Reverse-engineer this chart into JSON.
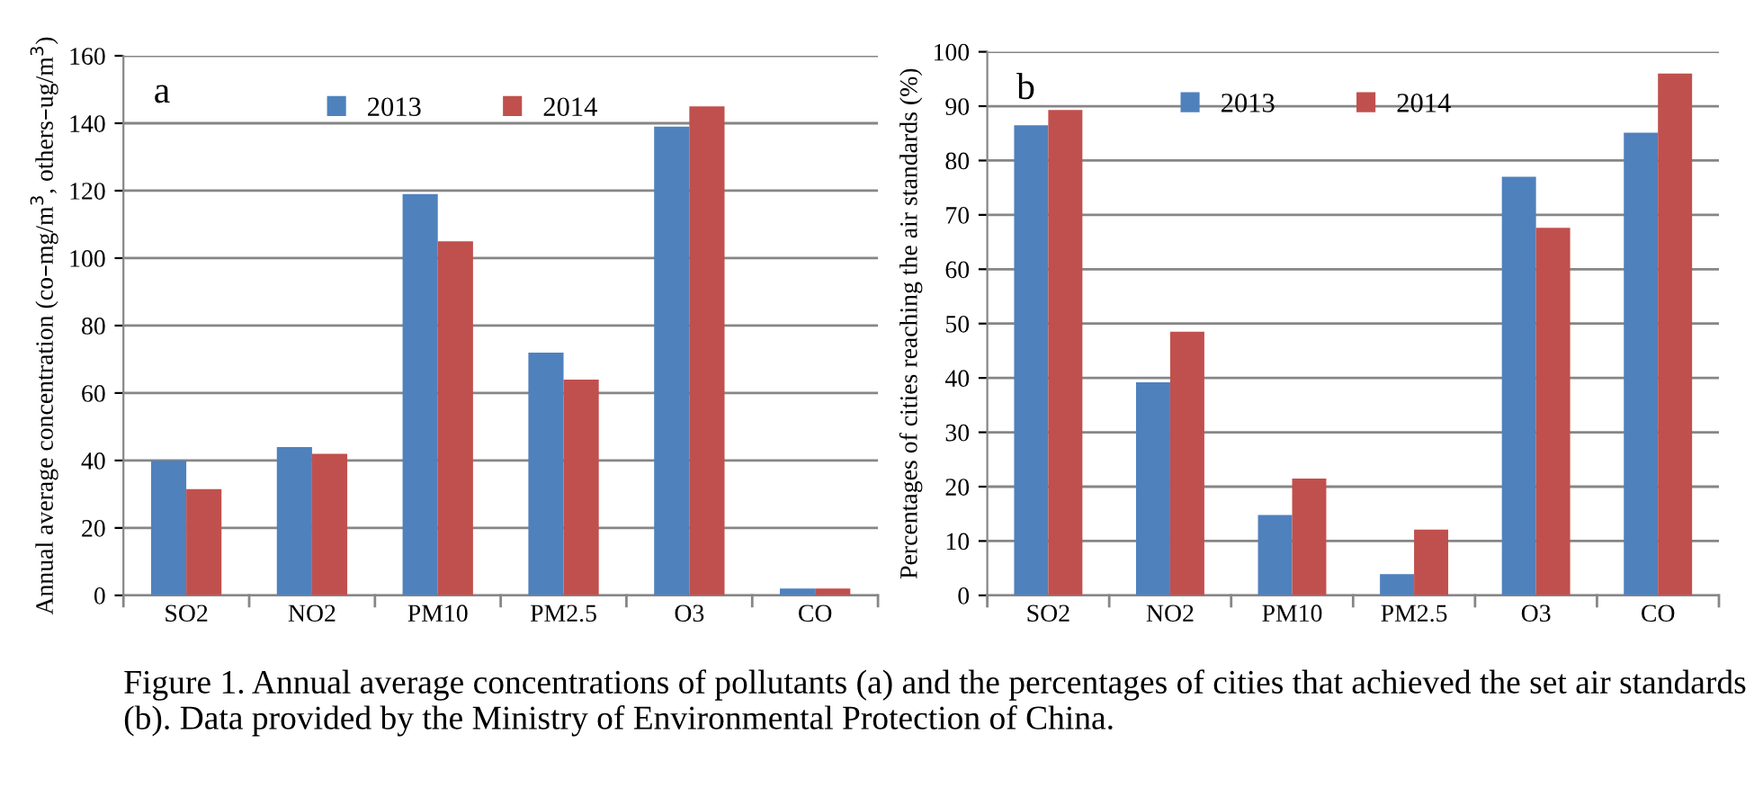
{
  "chart_data": [
    {
      "type": "bar",
      "ylabel": "Annual average concentration (co–mg/m$^{3}$, others–ug/m$^{3}$)",
      "categories": [
        "SO2",
        "NO2",
        "PM10",
        "PM2.5",
        "O3",
        "CO"
      ],
      "series": [
        {
          "name": "2013",
          "color": "#4f81bd",
          "values": [
            40,
            44,
            119,
            72,
            139,
            2
          ]
        },
        {
          "name": "2014",
          "color": "#c0504d",
          "values": [
            31.5,
            42,
            105,
            64,
            145,
            2
          ]
        }
      ],
      "ylim": [
        0,
        160
      ],
      "yticks": [
        0,
        20,
        40,
        60,
        80,
        100,
        120,
        140,
        160
      ],
      "grid": "y",
      "legend": "top",
      "annotations": [
        "a",
        "Figure 1. Annual average concentrations of pollutants (a) and the percentages of cities that achieved the set air standards (b). Data provided by the Ministry of Environmental Protection of China."
      ]
    },
    {
      "type": "bar",
      "ylabel": "Percentages of cities reaching the air standards (%)",
      "categories": [
        "SO2",
        "NO2",
        "PM10",
        "PM2.5",
        "O3",
        "CO"
      ],
      "series": [
        {
          "name": "2013",
          "color": "#4f81bd",
          "values": [
            86.5,
            39.2,
            14.8,
            3.9,
            77,
            85.1
          ]
        },
        {
          "name": "2014",
          "color": "#c0504d",
          "values": [
            89.3,
            48.5,
            21.5,
            12.1,
            67.6,
            96
          ]
        }
      ],
      "ylim": [
        0,
        100
      ],
      "yticks": [
        0,
        10,
        20,
        30,
        40,
        50,
        60,
        70,
        80,
        90,
        100
      ],
      "grid": "y",
      "legend": "top",
      "annotations": [
        "b"
      ]
    }
  ]
}
